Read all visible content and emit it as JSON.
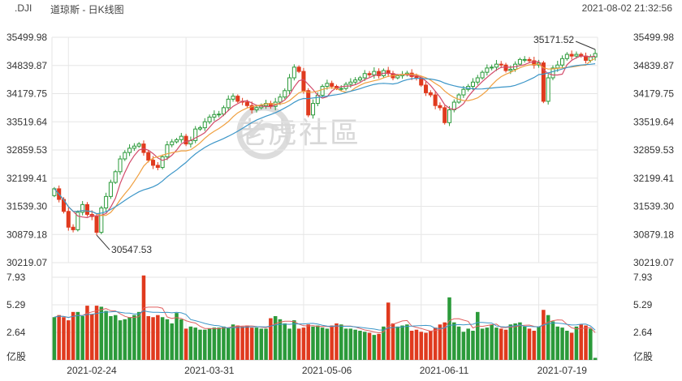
{
  "header": {
    "symbol": ".DJI",
    "title": "道琼斯 - 日K线图",
    "timestamp": "2021-08-02 21:32:56"
  },
  "watermark": {
    "text": "老虎社區"
  },
  "colors": {
    "up": "#2b9a3a",
    "down": "#e03a1e",
    "ma5": "#d24a6a",
    "ma10": "#f0a040",
    "ma20": "#3c96c8",
    "vol_ma5": "#e06060",
    "vol_ma10": "#3c96c8",
    "grid": "#e6e6e6"
  },
  "chart_data": [
    {
      "type": "candlestick",
      "price_axis": {
        "ylim": [
          30219.07,
          35499.98
        ],
        "tick_labels": [
          "35499.98",
          "34839.87",
          "34179.75",
          "33519.64",
          "32859.53",
          "32199.41",
          "31539.30",
          "30879.18",
          "30219.07"
        ]
      },
      "x_tick_labels": [
        "2021-02-24",
        "2021-03-31",
        "2021-05-06",
        "2021-06-11",
        "2021-07-19"
      ],
      "annotations": {
        "high_label": "35171.52",
        "low_label": "30547.53"
      },
      "closes": [
        31950,
        31700,
        31420,
        31050,
        30990,
        31400,
        31580,
        31350,
        31300,
        30930,
        31500,
        31770,
        32100,
        32350,
        32650,
        32800,
        32900,
        32950,
        33000,
        32800,
        32620,
        32500,
        32450,
        32700,
        32980,
        33050,
        33100,
        33180,
        33000,
        33080,
        33350,
        33380,
        33520,
        33630,
        33690,
        33700,
        33850,
        34050,
        34120,
        34000,
        33980,
        33900,
        33800,
        33850,
        33900,
        33950,
        33880,
        33980,
        34100,
        34250,
        34550,
        34800,
        34700,
        34250,
        33680,
        33950,
        34140,
        34350,
        34420,
        34350,
        34300,
        34300,
        34400,
        34450,
        34500,
        34550,
        34650,
        34620,
        34700,
        34600,
        34720,
        34650,
        34550,
        34600,
        34630,
        34660,
        34580,
        34550,
        34380,
        34200,
        34150,
        33900,
        33850,
        33500,
        33800,
        33980,
        34150,
        34280,
        34350,
        34450,
        34550,
        34680,
        34780,
        34800,
        34870,
        34850,
        34720,
        34750,
        34870,
        34980,
        34980,
        34950,
        34850,
        34900,
        34000,
        34550,
        34780,
        34850,
        35000,
        35100,
        35060,
        35100,
        35060,
        34960,
        35040,
        35120
      ]
    },
    {
      "type": "bar",
      "volume_axis": {
        "tick_labels": [
          "7.93",
          "5.29",
          "2.64"
        ],
        "unit_label": "亿股",
        "ylim": [
          0,
          7.93
        ]
      },
      "values": [
        4.1,
        4.3,
        4.1,
        3.8,
        4.6,
        4.6,
        4.2,
        5.2,
        4.4,
        5.2,
        5.1,
        4.7,
        4.2,
        4.3,
        3.8,
        3.9,
        4.1,
        4.3,
        4.6,
        8.1,
        4.2,
        4.1,
        4.3,
        4.1,
        3.9,
        3.5,
        4.5,
        3.9,
        3.0,
        3.2,
        3.1,
        2.9,
        2.9,
        3.0,
        3.1,
        3.1,
        3.2,
        3.1,
        3.4,
        3.3,
        3.2,
        3.3,
        3.1,
        3.1,
        3.0,
        3.0,
        4.0,
        4.2,
        3.9,
        3.5,
        3.0,
        3.8,
        3.0,
        3.1,
        3.4,
        3.2,
        3.3,
        3.1,
        3.0,
        3.3,
        3.5,
        3.4,
        3.0,
        3.0,
        2.9,
        2.8,
        2.7,
        2.6,
        2.4,
        2.5,
        3.2,
        5.5,
        3.5,
        3.2,
        3.3,
        3.4,
        2.8,
        2.9,
        2.7,
        2.6,
        2.8,
        3.1,
        3.4,
        3.6,
        6.0,
        3.6,
        3.2,
        2.7,
        3.0,
        2.8,
        4.6,
        3.0,
        3.1,
        3.4,
        3.1,
        3.0,
        2.9,
        3.4,
        3.5,
        3.6,
        3.2,
        3.0,
        2.8,
        3.2,
        4.8,
        4.3,
        3.7,
        3.2,
        3.1,
        2.8,
        2.6,
        3.2,
        3.4,
        3.3,
        3.0,
        0.2
      ]
    }
  ]
}
